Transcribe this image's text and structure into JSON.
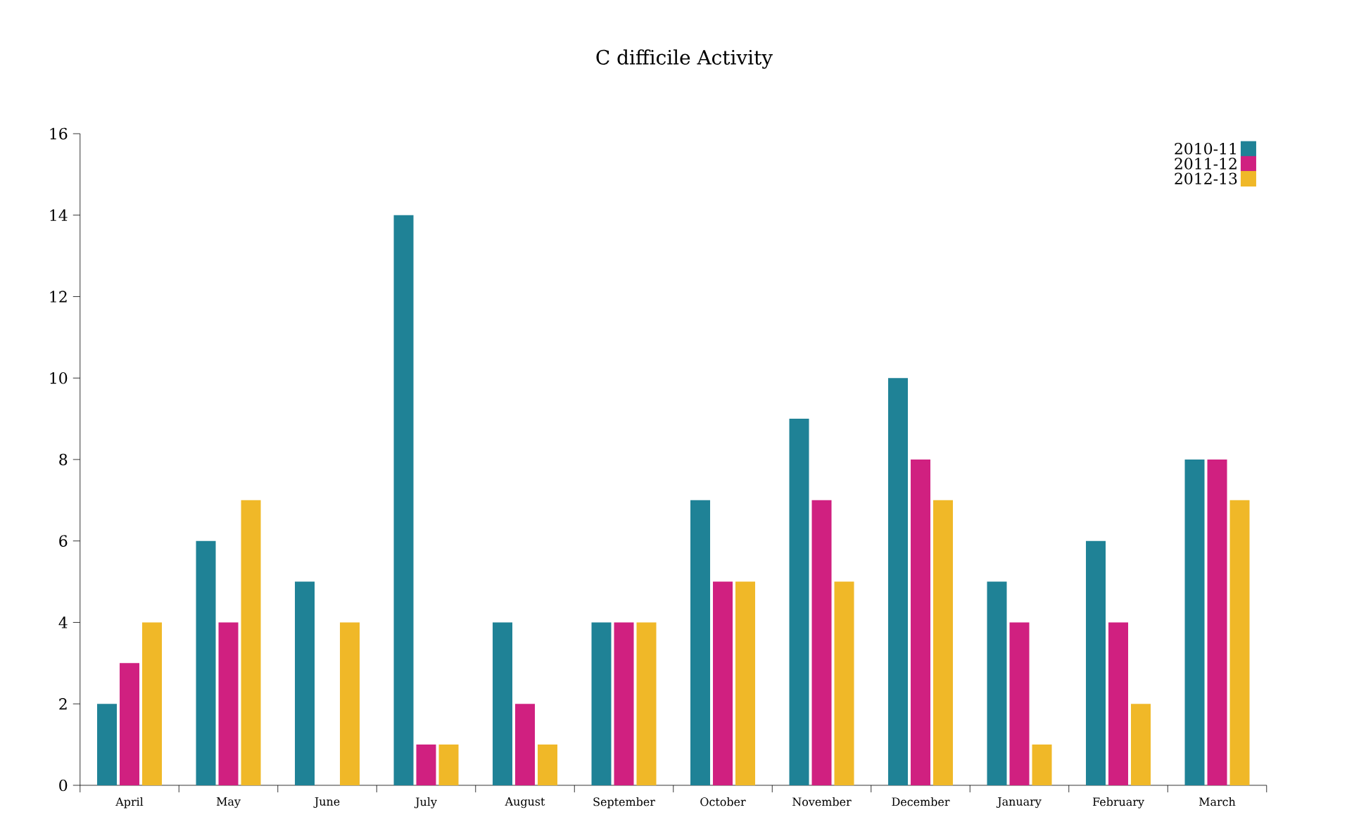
{
  "chart_data": {
    "type": "bar",
    "title": "C difficile Activity",
    "categories": [
      "April",
      "May",
      "June",
      "July",
      "August",
      "September",
      "October",
      "November",
      "December",
      "January",
      "February",
      "March"
    ],
    "series": [
      {
        "name": "2010-11",
        "color": "#1f8296",
        "values": [
          2,
          6,
          5,
          14,
          4,
          4,
          7,
          9,
          10,
          5,
          6,
          8
        ]
      },
      {
        "name": "2011-12",
        "color": "#d02080",
        "values": [
          3,
          4,
          0,
          1,
          2,
          4,
          5,
          7,
          8,
          4,
          4,
          8
        ]
      },
      {
        "name": "2012-13",
        "color": "#f0b828",
        "values": [
          4,
          7,
          4,
          1,
          1,
          4,
          5,
          5,
          7,
          1,
          2,
          7
        ]
      }
    ],
    "ylim": [
      0,
      16
    ],
    "yticks": [
      0,
      2,
      4,
      6,
      8,
      10,
      12,
      14,
      16
    ],
    "grid": false,
    "legend": "top right"
  }
}
